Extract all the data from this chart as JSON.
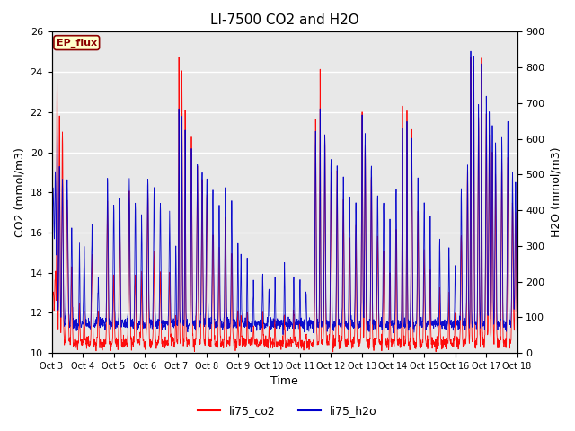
{
  "title": "LI-7500 CO2 and H2O",
  "xlabel": "Time",
  "ylabel_left": "CO2 (mmol/m3)",
  "ylabel_right": "H2O (mmol/m3)",
  "co2_color": "#FF0000",
  "h2o_color": "#0000CC",
  "co2_ylim": [
    10,
    26
  ],
  "h2o_ylim": [
    0,
    900
  ],
  "co2_yticks": [
    10,
    12,
    14,
    16,
    18,
    20,
    22,
    24,
    26
  ],
  "h2o_yticks": [
    0,
    100,
    200,
    300,
    400,
    500,
    600,
    700,
    800,
    900
  ],
  "xtick_labels": [
    "Oct 3",
    "Oct 4",
    "Oct 5",
    "Oct 6",
    "Oct 7",
    "Oct 8",
    "Oct 9",
    "Oct 10",
    "Oct 11",
    "Oct 12",
    "Oct 13",
    "Oct 14",
    "Oct 15",
    "Oct 16",
    "Oct 17",
    "Oct 18"
  ],
  "legend_labels": [
    "li75_co2",
    "li75_h2o"
  ],
  "annotation_text": "EP_flux",
  "annotation_color": "#8B0000",
  "background_color": "#e8e8e8",
  "n_days": 15,
  "n_points_per_day": 144,
  "title_fontsize": 11,
  "axis_label_fontsize": 9,
  "tick_fontsize": 8,
  "legend_fontsize": 9
}
